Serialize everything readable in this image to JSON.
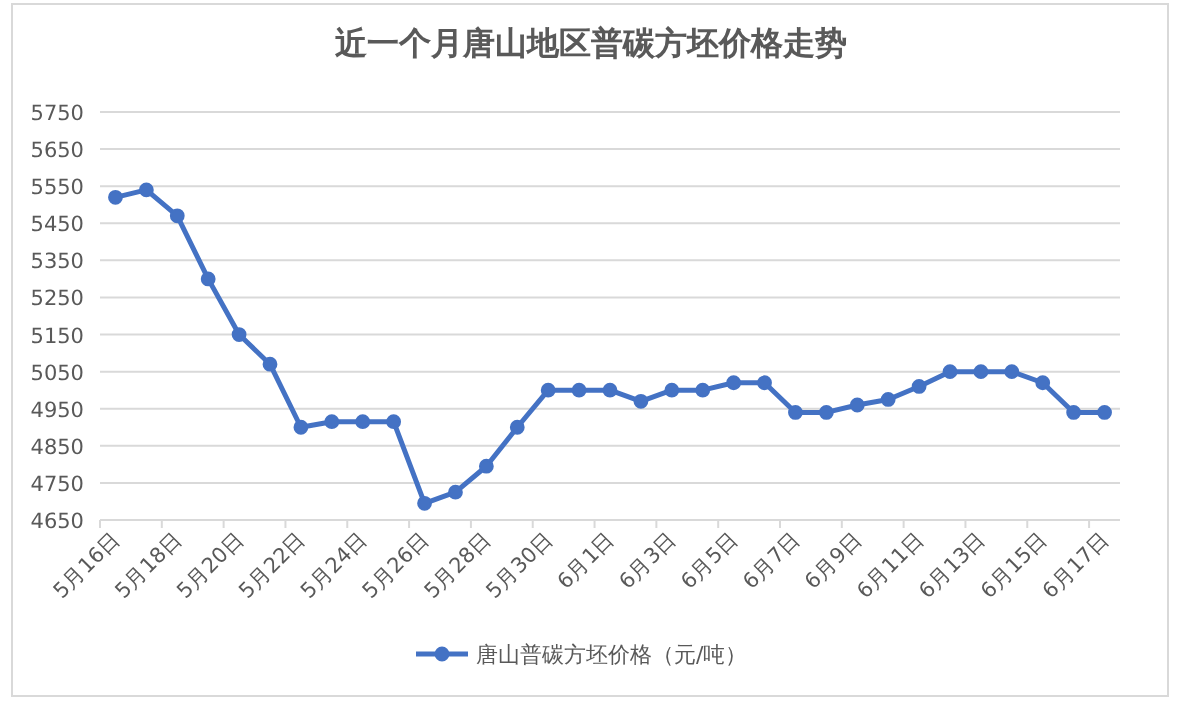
{
  "chart_data": {
    "type": "line",
    "title": "近一个月唐山地区普碳方坯价格走势",
    "categories": [
      "5月16日",
      null,
      "5月18日",
      null,
      "5月20日",
      null,
      "5月22日",
      null,
      "5月24日",
      null,
      "5月26日",
      null,
      "5月28日",
      null,
      "5月30日",
      null,
      "6月1日",
      null,
      "6月3日",
      null,
      "6月5日",
      null,
      "6月7日",
      null,
      "6月9日",
      null,
      "6月11日",
      null,
      "6月13日",
      null,
      "6月15日",
      null,
      "6月17日"
    ],
    "series": [
      {
        "name": "唐山普碳方坯价格（元/吨）",
        "color": "#4472c4",
        "values": [
          5520,
          5540,
          5470,
          5300,
          5150,
          5070,
          4900,
          4915,
          4915,
          4915,
          4695,
          4725,
          4795,
          4900,
          5000,
          5000,
          5000,
          4970,
          5000,
          5000,
          5020,
          5020,
          4940,
          4940,
          4960,
          4975,
          5010,
          5050,
          5050,
          5050,
          5020,
          4940,
          4940
        ]
      }
    ],
    "ylim": [
      4650,
      5750
    ],
    "yticks": [
      4650,
      4750,
      4850,
      4950,
      5050,
      5150,
      5250,
      5350,
      5450,
      5550,
      5650,
      5750
    ],
    "grid": "y",
    "legend": "bottom",
    "marker": "circle",
    "line_style": "solid"
  }
}
